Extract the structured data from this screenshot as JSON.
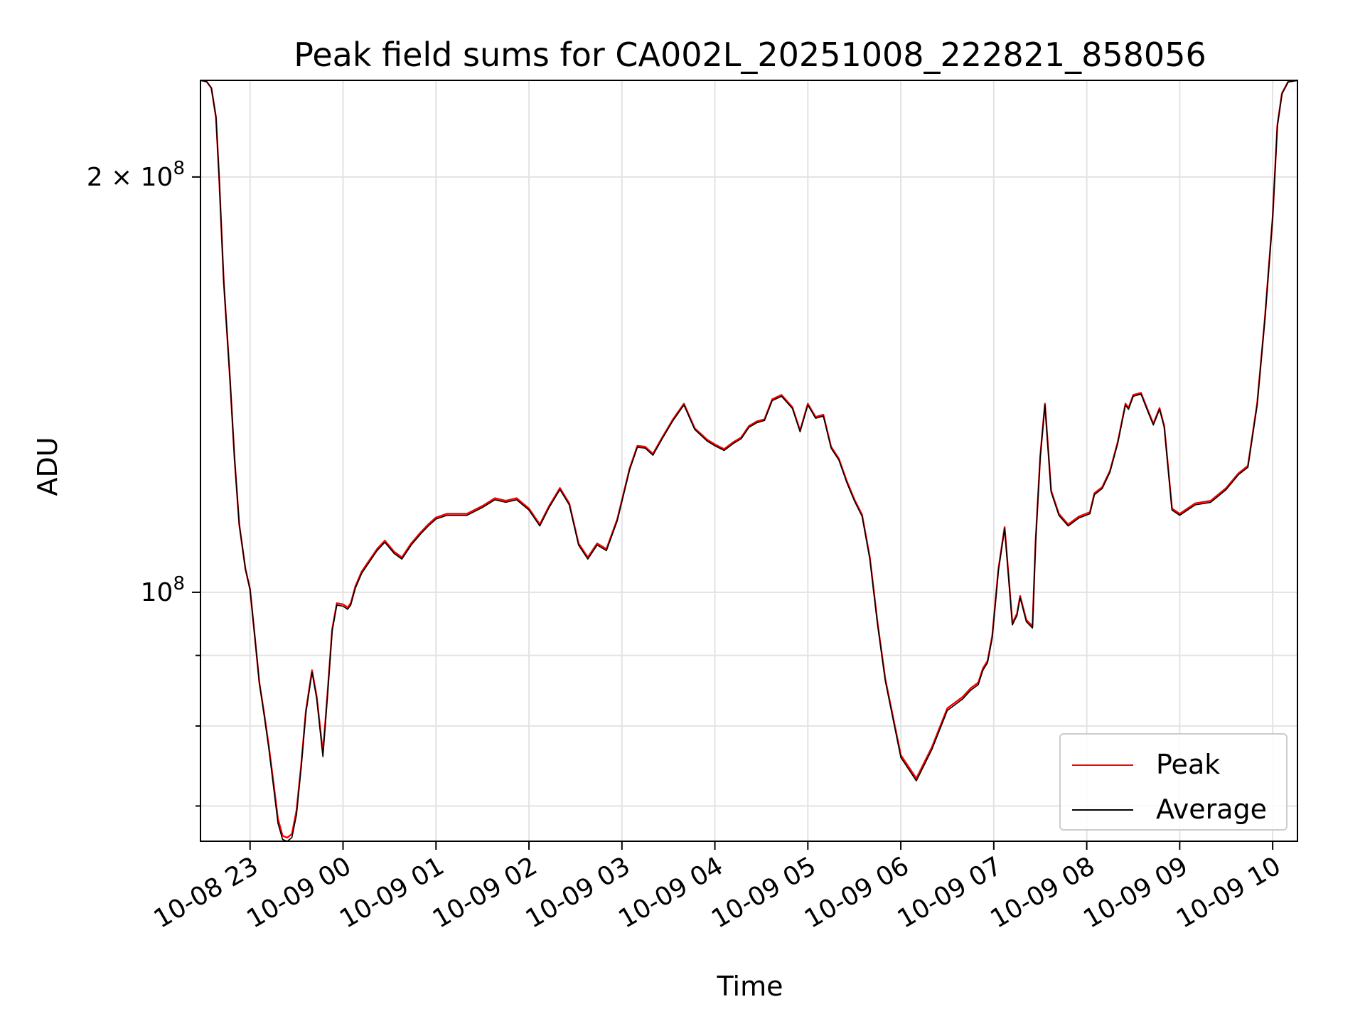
{
  "chart_data": {
    "type": "line",
    "title": "Peak field sums for CA002L_20251008_222821_858056",
    "xlabel": "Time",
    "ylabel": "ADU",
    "y_scale": "log",
    "grid": true,
    "legend_position": "lower-right",
    "xlim": [
      "10-08 22:28",
      "10-09 10:16"
    ],
    "ylim": [
      66000000,
      235000000
    ],
    "x_tick_labels": [
      "10-08 23",
      "10-09 00",
      "10-09 01",
      "10-09 02",
      "10-09 03",
      "10-09 04",
      "10-09 05",
      "10-09 06",
      "10-09 07",
      "10-09 08",
      "10-09 09",
      "10-09 10"
    ],
    "x_ticks": [
      "10-08 23:00",
      "10-09 00:00",
      "10-09 01:00",
      "10-09 02:00",
      "10-09 03:00",
      "10-09 04:00",
      "10-09 05:00",
      "10-09 06:00",
      "10-09 07:00",
      "10-09 08:00",
      "10-09 09:00",
      "10-09 10:00"
    ],
    "y_major_ticks": [
      {
        "value": 100000000,
        "label_base": "10",
        "label_exp": "8"
      },
      {
        "value": 200000000,
        "label_base": "2 × 10",
        "label_exp": "8"
      }
    ],
    "y_minor_ticks": [
      70000000,
      80000000,
      90000000
    ],
    "series": [
      {
        "name": "Peak",
        "color": "#ff0000",
        "x": [
          "10-08 22:28",
          "10-08 22:32",
          "10-08 22:35",
          "10-08 22:38",
          "10-08 22:40",
          "10-08 22:43",
          "10-08 22:47",
          "10-08 22:50",
          "10-08 22:53",
          "10-08 22:57",
          "10-08 23:00",
          "10-08 23:03",
          "10-08 23:06",
          "10-08 23:09",
          "10-08 23:12",
          "10-08 23:15",
          "10-08 23:18",
          "10-08 23:21",
          "10-08 23:24",
          "10-08 23:27",
          "10-08 23:30",
          "10-08 23:33",
          "10-08 23:36",
          "10-08 23:40",
          "10-08 23:43",
          "10-08 23:47",
          "10-08 23:50",
          "10-08 23:53",
          "10-08 23:56",
          "10-09 00:00",
          "10-09 00:03",
          "10-09 00:05",
          "10-09 00:08",
          "10-09 00:12",
          "10-09 00:17",
          "10-09 00:22",
          "10-09 00:27",
          "10-09 00:33",
          "10-09 00:38",
          "10-09 00:44",
          "10-09 00:50",
          "10-09 00:55",
          "10-09 01:00",
          "10-09 01:07",
          "10-09 01:14",
          "10-09 01:20",
          "10-09 01:30",
          "10-09 01:38",
          "10-09 01:45",
          "10-09 01:52",
          "10-09 02:00",
          "10-09 02:07",
          "10-09 02:13",
          "10-09 02:20",
          "10-09 02:26",
          "10-09 02:32",
          "10-09 02:38",
          "10-09 02:44",
          "10-09 02:50",
          "10-09 02:57",
          "10-09 03:05",
          "10-09 03:10",
          "10-09 03:15",
          "10-09 03:20",
          "10-09 03:26",
          "10-09 03:33",
          "10-09 03:40",
          "10-09 03:47",
          "10-09 03:55",
          "10-09 04:00",
          "10-09 04:06",
          "10-09 04:12",
          "10-09 04:17",
          "10-09 04:22",
          "10-09 04:27",
          "10-09 04:32",
          "10-09 04:37",
          "10-09 04:43",
          "10-09 04:50",
          "10-09 04:55",
          "10-09 05:00",
          "10-09 05:05",
          "10-09 05:10",
          "10-09 05:15",
          "10-09 05:20",
          "10-09 05:25",
          "10-09 05:30",
          "10-09 05:35",
          "10-09 05:40",
          "10-09 05:45",
          "10-09 05:50",
          "10-09 06:00",
          "10-09 06:10",
          "10-09 06:20",
          "10-09 06:30",
          "10-09 06:40",
          "10-09 06:45",
          "10-09 06:50",
          "10-09 06:53",
          "10-09 06:56",
          "10-09 06:59",
          "10-09 07:03",
          "10-09 07:07",
          "10-09 07:12",
          "10-09 07:15",
          "10-09 07:17",
          "10-09 07:21",
          "10-09 07:25",
          "10-09 07:27",
          "10-09 07:30",
          "10-09 07:33",
          "10-09 07:37",
          "10-09 07:42",
          "10-09 07:48",
          "10-09 07:55",
          "10-09 08:02",
          "10-09 08:05",
          "10-09 08:10",
          "10-09 08:15",
          "10-09 08:20",
          "10-09 08:25",
          "10-09 08:27",
          "10-09 08:30",
          "10-09 08:35",
          "10-09 08:40",
          "10-09 08:43",
          "10-09 08:47",
          "10-09 08:50",
          "10-09 08:55",
          "10-09 09:00",
          "10-09 09:10",
          "10-09 09:20",
          "10-09 09:30",
          "10-09 09:38",
          "10-09 09:44",
          "10-09 09:50",
          "10-09 09:55",
          "10-09 10:00",
          "10-09 10:03",
          "10-09 10:06",
          "10-09 10:10",
          "10-09 10:16"
        ],
        "values": [
          235000000,
          234500000,
          232000000,
          221000000,
          200000000,
          168000000,
          143000000,
          125000000,
          112000000,
          104000000,
          100500000,
          93000000,
          86000000,
          81800000,
          77500000,
          73000000,
          68500000,
          66600000,
          66400000,
          66800000,
          69500000,
          75000000,
          82000000,
          87800000,
          84000000,
          76500000,
          84500000,
          94000000,
          98200000,
          98000000,
          97500000,
          98200000,
          101000000,
          103500000,
          105500000,
          107500000,
          109000000,
          107000000,
          106000000,
          108500000,
          110500000,
          112000000,
          113300000,
          114000000,
          114000000,
          114000000,
          115500000,
          117000000,
          116500000,
          117000000,
          115000000,
          112000000,
          115500000,
          119000000,
          116000000,
          108500000,
          106000000,
          108500000,
          107500000,
          113000000,
          123000000,
          127700000,
          127500000,
          126000000,
          129500000,
          133500000,
          137000000,
          131500000,
          129000000,
          128000000,
          127000000,
          128500000,
          129500000,
          132000000,
          133000000,
          133500000,
          138000000,
          139000000,
          136200000,
          131000000,
          137000000,
          134000000,
          134500000,
          127500000,
          125000000,
          120500000,
          116800000,
          113800000,
          106000000,
          95000000,
          86500000,
          76200000,
          73300000,
          77200000,
          82400000,
          84000000,
          85200000,
          86000000,
          88100000,
          89200000,
          93000000,
          104000000,
          111500000,
          95000000,
          96500000,
          99400000,
          95500000,
          94500000,
          109000000,
          125500000,
          137000000,
          118500000,
          114000000,
          112000000,
          113500000,
          114300000,
          118000000,
          119200000,
          122500000,
          128500000,
          137000000,
          136000000,
          139000000,
          139500000,
          135000000,
          132500000,
          136000000,
          132000000,
          115000000,
          114000000,
          116000000,
          116500000,
          119000000,
          122000000,
          123500000,
          137000000,
          158000000,
          187000000,
          218000000,
          230000000,
          234500000,
          235000000
        ]
      },
      {
        "name": "Average",
        "color": "#000000",
        "x": [
          "10-08 22:28",
          "10-08 22:32",
          "10-08 22:35",
          "10-08 22:38",
          "10-08 22:40",
          "10-08 22:43",
          "10-08 22:47",
          "10-08 22:50",
          "10-08 22:53",
          "10-08 22:57",
          "10-08 23:00",
          "10-08 23:03",
          "10-08 23:06",
          "10-08 23:09",
          "10-08 23:12",
          "10-08 23:15",
          "10-08 23:18",
          "10-08 23:21",
          "10-08 23:24",
          "10-08 23:27",
          "10-08 23:30",
          "10-08 23:33",
          "10-08 23:36",
          "10-08 23:40",
          "10-08 23:43",
          "10-08 23:47",
          "10-08 23:50",
          "10-08 23:53",
          "10-08 23:56",
          "10-09 00:00",
          "10-09 00:03",
          "10-09 00:05",
          "10-09 00:08",
          "10-09 00:12",
          "10-09 00:17",
          "10-09 00:22",
          "10-09 00:27",
          "10-09 00:33",
          "10-09 00:38",
          "10-09 00:44",
          "10-09 00:50",
          "10-09 00:55",
          "10-09 01:00",
          "10-09 01:07",
          "10-09 01:14",
          "10-09 01:20",
          "10-09 01:30",
          "10-09 01:38",
          "10-09 01:45",
          "10-09 01:52",
          "10-09 02:00",
          "10-09 02:07",
          "10-09 02:13",
          "10-09 02:20",
          "10-09 02:26",
          "10-09 02:32",
          "10-09 02:38",
          "10-09 02:44",
          "10-09 02:50",
          "10-09 02:57",
          "10-09 03:05",
          "10-09 03:10",
          "10-09 03:15",
          "10-09 03:20",
          "10-09 03:26",
          "10-09 03:33",
          "10-09 03:40",
          "10-09 03:47",
          "10-09 03:55",
          "10-09 04:00",
          "10-09 04:06",
          "10-09 04:12",
          "10-09 04:17",
          "10-09 04:22",
          "10-09 04:27",
          "10-09 04:32",
          "10-09 04:37",
          "10-09 04:43",
          "10-09 04:50",
          "10-09 04:55",
          "10-09 05:00",
          "10-09 05:05",
          "10-09 05:10",
          "10-09 05:15",
          "10-09 05:20",
          "10-09 05:25",
          "10-09 05:30",
          "10-09 05:35",
          "10-09 05:40",
          "10-09 05:45",
          "10-09 05:50",
          "10-09 06:00",
          "10-09 06:10",
          "10-09 06:20",
          "10-09 06:30",
          "10-09 06:40",
          "10-09 06:45",
          "10-09 06:50",
          "10-09 06:53",
          "10-09 06:56",
          "10-09 06:59",
          "10-09 07:03",
          "10-09 07:07",
          "10-09 07:12",
          "10-09 07:15",
          "10-09 07:17",
          "10-09 07:21",
          "10-09 07:25",
          "10-09 07:27",
          "10-09 07:30",
          "10-09 07:33",
          "10-09 07:37",
          "10-09 07:42",
          "10-09 07:48",
          "10-09 07:55",
          "10-09 08:02",
          "10-09 08:05",
          "10-09 08:10",
          "10-09 08:15",
          "10-09 08:20",
          "10-09 08:25",
          "10-09 08:27",
          "10-09 08:30",
          "10-09 08:35",
          "10-09 08:40",
          "10-09 08:43",
          "10-09 08:47",
          "10-09 08:50",
          "10-09 08:55",
          "10-09 09:00",
          "10-09 09:10",
          "10-09 09:20",
          "10-09 09:30",
          "10-09 09:38",
          "10-09 09:44",
          "10-09 09:50",
          "10-09 09:55",
          "10-09 10:00",
          "10-09 10:03",
          "10-09 10:06",
          "10-09 10:10",
          "10-09 10:16"
        ],
        "values": [
          235000000,
          234500000,
          232000000,
          221000000,
          200000000,
          168000000,
          143000000,
          125000000,
          112000000,
          104000000,
          100500000,
          93000000,
          86000000,
          81500000,
          77200000,
          72500000,
          68000000,
          66200000,
          66000000,
          66400000,
          69000000,
          74700000,
          81700000,
          87500000,
          83700000,
          76000000,
          84200000,
          93700000,
          97900000,
          97700000,
          97200000,
          97900000,
          100700000,
          103200000,
          105200000,
          107200000,
          108700000,
          106700000,
          105700000,
          108200000,
          110200000,
          111700000,
          113000000,
          113700000,
          113700000,
          113700000,
          115200000,
          116700000,
          116200000,
          116700000,
          114700000,
          111700000,
          115200000,
          118700000,
          115700000,
          108200000,
          105700000,
          108200000,
          107200000,
          112700000,
          122700000,
          127400000,
          127200000,
          125700000,
          129200000,
          133200000,
          136700000,
          131200000,
          128700000,
          127700000,
          126700000,
          128200000,
          129200000,
          131700000,
          132700000,
          133200000,
          137700000,
          138700000,
          135900000,
          130700000,
          136700000,
          133700000,
          134200000,
          127200000,
          124700000,
          120200000,
          116500000,
          113500000,
          105700000,
          94700000,
          86200000,
          75900000,
          73000000,
          76900000,
          82100000,
          83700000,
          84900000,
          85700000,
          87800000,
          88900000,
          92700000,
          103700000,
          111200000,
          94700000,
          96200000,
          99100000,
          95200000,
          94200000,
          108700000,
          125200000,
          136700000,
          118200000,
          113700000,
          111700000,
          113200000,
          114000000,
          117700000,
          118900000,
          122200000,
          128200000,
          136700000,
          135700000,
          138700000,
          139200000,
          134700000,
          132200000,
          135700000,
          131700000,
          114700000,
          113700000,
          115700000,
          116200000,
          118700000,
          121700000,
          123200000,
          136700000,
          157700000,
          186700000,
          217700000,
          229700000,
          234300000,
          235000000
        ]
      }
    ]
  }
}
